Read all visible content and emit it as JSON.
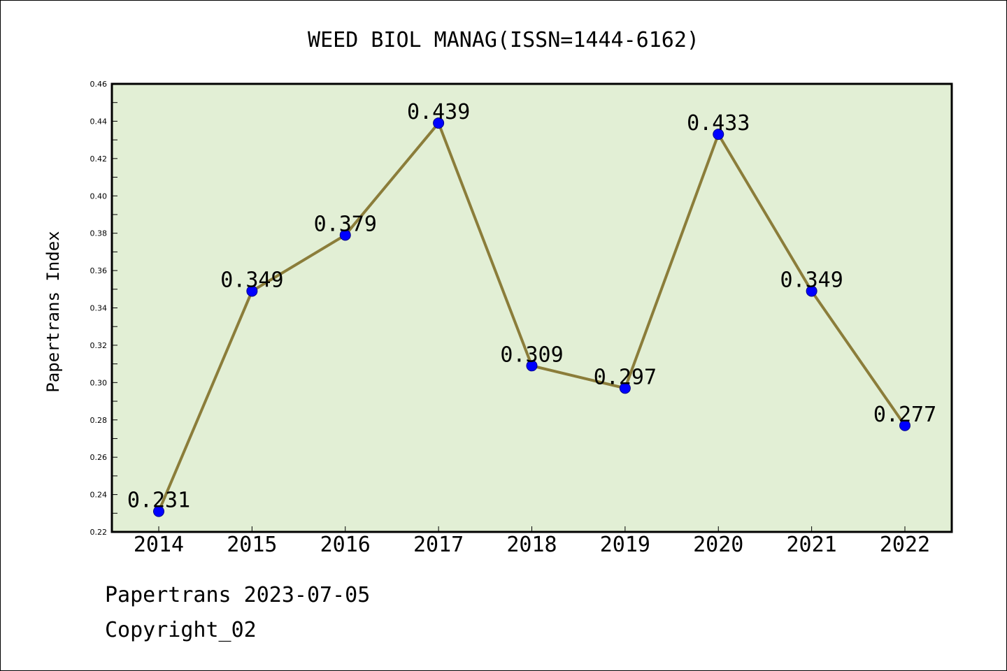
{
  "footer": {
    "line1": "Papertrans 2023-07-05",
    "line2": "Copyright_02"
  },
  "chart_data": {
    "type": "line",
    "title": "WEED BIOL MANAG(ISSN=1444-6162)",
    "xlabel": "",
    "ylabel": "Papertrans Index",
    "categories": [
      "2014",
      "2015",
      "2016",
      "2017",
      "2018",
      "2019",
      "2020",
      "2021",
      "2022"
    ],
    "values": [
      0.231,
      0.349,
      0.379,
      0.439,
      0.309,
      0.297,
      0.433,
      0.349,
      0.277
    ],
    "data_labels": [
      "0.231",
      "0.349",
      "0.379",
      "0.439",
      "0.309",
      "0.297",
      "0.433",
      "0.349",
      "0.277"
    ],
    "ylim": [
      0.22,
      0.46
    ],
    "yticks": [
      "0.22",
      "0.24",
      "0.26",
      "0.28",
      "0.30",
      "0.32",
      "0.34",
      "0.36",
      "0.38",
      "0.40",
      "0.42",
      "0.44",
      "0.46"
    ],
    "grid": false,
    "legend": "none",
    "colors": {
      "plot_background": "#e2efd5",
      "line": "#8b7d3a",
      "marker": "#0000ff"
    }
  }
}
